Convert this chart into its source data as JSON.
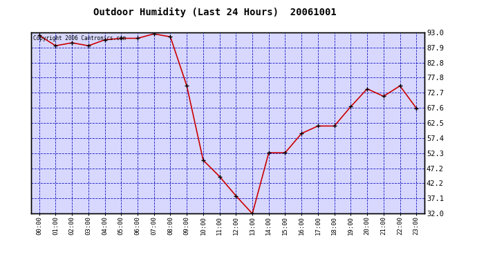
{
  "title": "Outdoor Humidity (Last 24 Hours)  20061001",
  "copyright_text": "Copyright 2006 Cantronics.com",
  "x_labels": [
    "00:00",
    "01:00",
    "02:00",
    "03:00",
    "04:00",
    "05:00",
    "06:00",
    "07:00",
    "08:00",
    "09:00",
    "10:00",
    "11:00",
    "12:00",
    "13:00",
    "14:00",
    "15:00",
    "16:00",
    "17:00",
    "18:00",
    "19:00",
    "20:00",
    "21:00",
    "22:00",
    "23:00"
  ],
  "y_values": [
    92.0,
    88.5,
    89.5,
    88.5,
    90.5,
    91.0,
    91.0,
    92.5,
    91.5,
    75.0,
    50.0,
    44.5,
    38.0,
    32.0,
    52.5,
    52.5,
    59.0,
    61.5,
    61.5,
    68.0,
    74.0,
    71.5,
    75.0,
    67.5
  ],
  "y_ticks": [
    32.0,
    37.1,
    42.2,
    47.2,
    52.3,
    57.4,
    62.5,
    67.6,
    72.7,
    77.8,
    82.8,
    87.9,
    93.0
  ],
  "ylim": [
    32.0,
    93.0
  ],
  "line_color": "#cc0000",
  "marker_color": "#000000",
  "bg_color": "#d8d8ff",
  "grid_color": "#0000bb",
  "title_color": "#000000",
  "border_color": "#000000",
  "outer_bg_color": "#ffffff"
}
